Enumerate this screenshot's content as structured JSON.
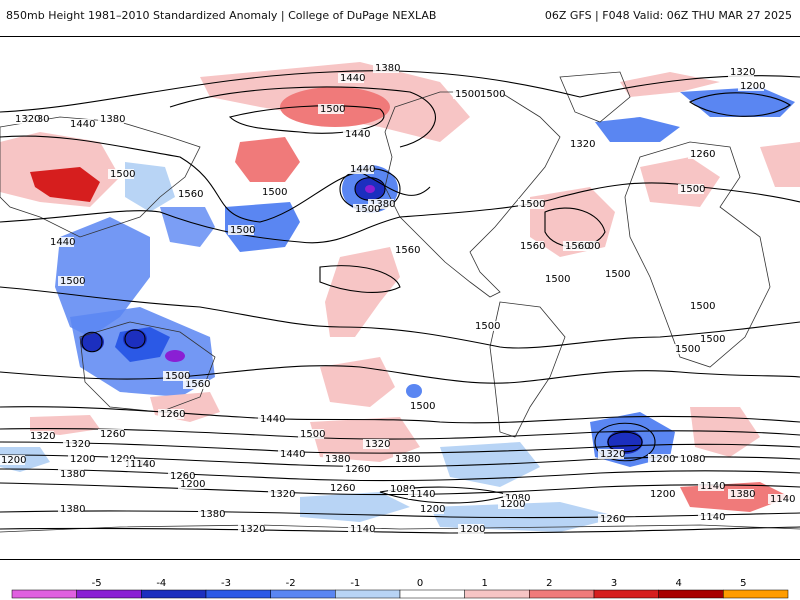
{
  "header": {
    "title": "850mb Height 1981–2010 Standardized Anomaly | College of DuPage NEXLAB",
    "run": "06Z GFS | F048 Valid: 06Z THU MAR 27 2025"
  },
  "colorbar": {
    "ticks": [
      "-5",
      "-4",
      "-3",
      "-2",
      "-1",
      "0",
      "1",
      "2",
      "3",
      "4",
      "5"
    ],
    "colors": [
      "#e060e0",
      "#8a1fd4",
      "#1c2fbf",
      "#2b59e6",
      "#5a86f2",
      "#b8d4f5",
      "#ffffff",
      "#f7c5c5",
      "#f07a7a",
      "#d61e1e",
      "#a80000",
      "#ff9c00"
    ]
  },
  "contours": {
    "labels": [
      {
        "text": "1380"
      },
      {
        "text": "1440"
      },
      {
        "text": "1500"
      },
      {
        "text": "1500"
      },
      {
        "text": "1320"
      },
      {
        "text": "1380"
      },
      {
        "text": "1440"
      },
      {
        "text": "1500"
      },
      {
        "text": "1560"
      },
      {
        "text": "1500"
      },
      {
        "text": "1440"
      },
      {
        "text": "1500"
      },
      {
        "text": "1380"
      },
      {
        "text": "1500"
      },
      {
        "text": "1500"
      },
      {
        "text": "1560"
      },
      {
        "text": "1500"
      },
      {
        "text": "1500"
      },
      {
        "text": "1560"
      },
      {
        "text": "1500"
      },
      {
        "text": "1500"
      },
      {
        "text": "1560"
      },
      {
        "text": "1440"
      },
      {
        "text": "1500"
      },
      {
        "text": "1320"
      },
      {
        "text": "1200"
      },
      {
        "text": "1320"
      },
      {
        "text": "1380"
      },
      {
        "text": "1260"
      },
      {
        "text": "1440"
      },
      {
        "text": "1500"
      },
      {
        "text": "1500"
      },
      {
        "text": "1500"
      },
      {
        "text": "1500"
      },
      {
        "text": "1500"
      },
      {
        "text": "1560"
      },
      {
        "text": "1500"
      },
      {
        "text": "1500"
      },
      {
        "text": "1440"
      },
      {
        "text": "1380"
      },
      {
        "text": "1320"
      },
      {
        "text": "1260"
      },
      {
        "text": "1200"
      },
      {
        "text": "1080"
      },
      {
        "text": "1140"
      },
      {
        "text": "1200"
      },
      {
        "text": "1320"
      },
      {
        "text": "1380"
      },
      {
        "text": "1320"
      },
      {
        "text": "1260"
      },
      {
        "text": "1200"
      },
      {
        "text": "1140"
      },
      {
        "text": "1380"
      },
      {
        "text": "1320"
      },
      {
        "text": "1260"
      },
      {
        "text": "1380"
      },
      {
        "text": "1200"
      },
      {
        "text": "1380"
      },
      {
        "text": "1080"
      },
      {
        "text": "1140"
      },
      {
        "text": "1080"
      },
      {
        "text": "1140"
      },
      {
        "text": "1200"
      },
      {
        "text": "1260"
      },
      {
        "text": "1320"
      },
      {
        "text": "1260"
      },
      {
        "text": "1380"
      },
      {
        "text": "1440"
      },
      {
        "text": "1500"
      },
      {
        "text": "1200"
      },
      {
        "text": "1200"
      },
      {
        "text": "1140"
      },
      {
        "text": "1140"
      },
      {
        "text": "1200"
      },
      {
        "text": "1320"
      },
      {
        "text": "1200"
      },
      {
        "text": "1140"
      },
      {
        "text": "1260"
      }
    ]
  }
}
